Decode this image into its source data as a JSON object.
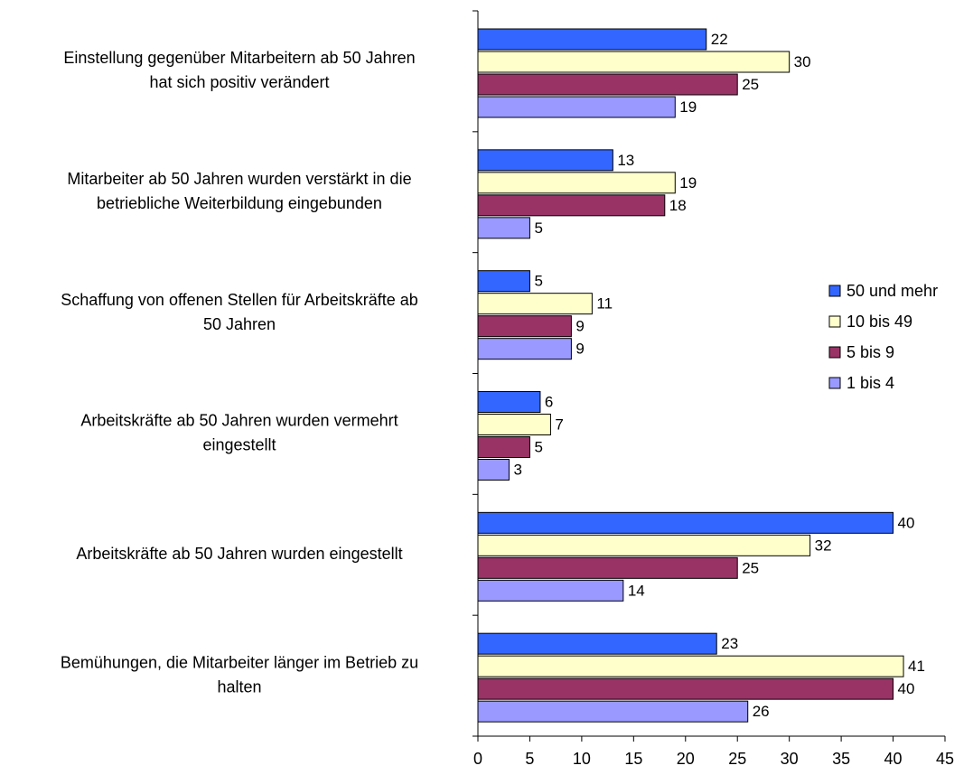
{
  "chart_data": {
    "type": "bar",
    "orientation": "horizontal",
    "categories": [
      [
        "Einstellung gegenüber Mitarbeitern ab 50 Jahren",
        "hat sich positiv verändert"
      ],
      [
        "Mitarbeiter ab 50 Jahren  wurden verstärkt in die",
        "betriebliche Weiterbildung eingebunden"
      ],
      [
        "Schaffung von offenen Stellen für Arbeitskräfte ab",
        "50 Jahren"
      ],
      [
        "Arbeitskräfte ab 50 Jahren wurden vermehrt",
        "eingestellt"
      ],
      [
        "Arbeitskräfte ab 50 Jahren wurden eingestellt"
      ],
      [
        "Bemühungen, die Mitarbeiter länger im Betrieb zu",
        "halten"
      ]
    ],
    "series": [
      {
        "name": "50 und mehr",
        "color": "#3366ff",
        "values": [
          22,
          13,
          5,
          6,
          40,
          23
        ]
      },
      {
        "name": "10 bis 49",
        "color": "#ffffcc",
        "values": [
          30,
          19,
          11,
          7,
          32,
          41
        ]
      },
      {
        "name": "5 bis 9",
        "color": "#993366",
        "values": [
          25,
          18,
          9,
          5,
          25,
          40
        ]
      },
      {
        "name": "1 bis 4",
        "color": "#9999ff",
        "values": [
          19,
          5,
          9,
          3,
          14,
          26
        ]
      }
    ],
    "xlim": [
      0,
      45
    ],
    "xticks": [
      0,
      5,
      10,
      15,
      20,
      25,
      30,
      35,
      40,
      45
    ],
    "legend": "right"
  }
}
